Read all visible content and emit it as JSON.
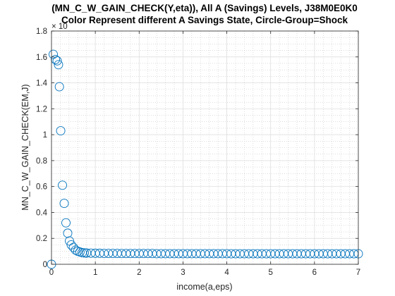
{
  "chart_data": {
    "type": "scatter",
    "title": "(MN_C_W_GAIN_CHECK(Y,eta)), All A (Savings) Levels, J38M0E0K0",
    "subtitle": "Color Represent different A Savings State, Circle-Group=Shock",
    "xlabel": "income(a,eps)",
    "ylabel": "MN_C_W_GAIN_CHECK(EM,J)",
    "xlim": [
      0,
      7
    ],
    "ylim": [
      0,
      1.8
    ],
    "xticks": [
      "0",
      "1",
      "2",
      "3",
      "4",
      "5",
      "6",
      "7"
    ],
    "yticks": [
      "0",
      "0.2",
      "0.4",
      "0.6",
      "0.8",
      "1",
      "1.2",
      "1.4",
      "1.6",
      "1.8"
    ],
    "exponent_label": "× 10",
    "grid": true,
    "minor_grid": true,
    "marker": "circle-open",
    "color": "#0072BD",
    "series": [
      {
        "x": [
          0.0,
          0.04,
          0.09,
          0.13,
          0.16,
          0.18,
          0.21,
          0.25,
          0.29,
          0.33,
          0.37,
          0.41,
          0.45,
          0.5,
          0.55,
          0.6,
          0.65,
          0.7,
          0.75,
          0.8,
          0.9,
          1.0,
          1.1,
          1.2,
          1.3,
          1.4,
          1.5,
          1.6,
          1.7,
          1.8,
          1.9,
          2.0,
          2.1,
          2.2,
          2.3,
          2.4,
          2.5,
          2.6,
          2.7,
          2.8,
          2.9,
          3.0,
          3.1,
          3.2,
          3.3,
          3.4,
          3.5,
          3.6,
          3.7,
          3.8,
          3.9,
          4.0,
          4.1,
          4.2,
          4.3,
          4.4,
          4.5,
          4.6,
          4.7,
          4.8,
          4.9,
          5.0,
          5.1,
          5.2,
          5.3,
          5.4,
          5.5,
          5.6,
          5.7,
          5.8,
          5.9,
          6.0,
          6.1,
          6.2,
          6.3,
          6.4,
          6.5,
          6.6,
          6.7,
          6.8,
          6.9,
          7.0
        ],
        "y": [
          0.0,
          1.62,
          1.58,
          1.57,
          1.54,
          1.37,
          1.03,
          0.61,
          0.47,
          0.32,
          0.24,
          0.18,
          0.15,
          0.13,
          0.11,
          0.1,
          0.095,
          0.09,
          0.088,
          0.087,
          0.086,
          0.085,
          0.085,
          0.084,
          0.084,
          0.084,
          0.084,
          0.083,
          0.083,
          0.083,
          0.083,
          0.083,
          0.083,
          0.083,
          0.083,
          0.082,
          0.082,
          0.082,
          0.082,
          0.082,
          0.082,
          0.082,
          0.082,
          0.082,
          0.082,
          0.082,
          0.082,
          0.082,
          0.082,
          0.082,
          0.082,
          0.082,
          0.081,
          0.081,
          0.081,
          0.081,
          0.081,
          0.081,
          0.081,
          0.081,
          0.081,
          0.081,
          0.081,
          0.081,
          0.081,
          0.081,
          0.081,
          0.081,
          0.081,
          0.081,
          0.081,
          0.081,
          0.081,
          0.081,
          0.081,
          0.081,
          0.081,
          0.081,
          0.081,
          0.081,
          0.081,
          0.081
        ]
      }
    ]
  }
}
